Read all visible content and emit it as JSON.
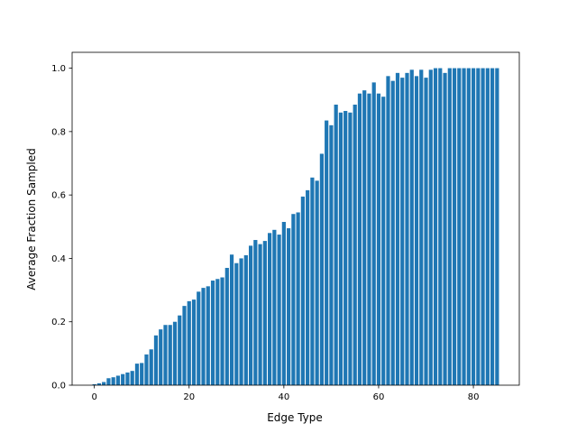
{
  "chart_data": {
    "type": "bar",
    "xlabel": "Edge Type",
    "ylabel": "Average Fraction Sampled",
    "x": [
      0,
      1,
      2,
      3,
      4,
      5,
      6,
      7,
      8,
      9,
      10,
      11,
      12,
      13,
      14,
      15,
      16,
      17,
      18,
      19,
      20,
      21,
      22,
      23,
      24,
      25,
      26,
      27,
      28,
      29,
      30,
      31,
      32,
      33,
      34,
      35,
      36,
      37,
      38,
      39,
      40,
      41,
      42,
      43,
      44,
      45,
      46,
      47,
      48,
      49,
      50,
      51,
      52,
      53,
      54,
      55,
      56,
      57,
      58,
      59,
      60,
      61,
      62,
      63,
      64,
      65,
      66,
      67,
      68,
      69,
      70,
      71,
      72,
      73,
      74,
      75,
      76,
      77,
      78,
      79,
      80,
      81,
      82,
      83,
      84,
      85
    ],
    "values": [
      0.003,
      0.006,
      0.01,
      0.022,
      0.025,
      0.03,
      0.035,
      0.04,
      0.045,
      0.068,
      0.07,
      0.097,
      0.113,
      0.157,
      0.176,
      0.19,
      0.19,
      0.2,
      0.22,
      0.25,
      0.265,
      0.27,
      0.295,
      0.307,
      0.312,
      0.33,
      0.335,
      0.34,
      0.37,
      0.412,
      0.385,
      0.4,
      0.41,
      0.44,
      0.458,
      0.445,
      0.455,
      0.48,
      0.49,
      0.475,
      0.515,
      0.495,
      0.54,
      0.545,
      0.595,
      0.615,
      0.655,
      0.645,
      0.73,
      0.835,
      0.82,
      0.885,
      0.86,
      0.865,
      0.86,
      0.885,
      0.92,
      0.93,
      0.92,
      0.955,
      0.92,
      0.91,
      0.975,
      0.96,
      0.985,
      0.97,
      0.985,
      0.995,
      0.975,
      0.995,
      0.97,
      0.995,
      1.0,
      1.0,
      0.985,
      1.0,
      1.0,
      1.0,
      1.0,
      1.0,
      1.0,
      1.0,
      1.0,
      1.0,
      1.0,
      1.0
    ],
    "color": "#1f77b4",
    "xlim": [
      -4.69,
      89.69
    ],
    "xticks": [
      0,
      20,
      40,
      60,
      80
    ],
    "ylim": [
      0,
      1.05
    ],
    "yticks": [
      {
        "value": 0,
        "label": "0.0"
      },
      {
        "value": 0.2,
        "label": "0.2"
      },
      {
        "value": 0.4,
        "label": "0.4"
      },
      {
        "value": 0.6,
        "label": "0.6"
      },
      {
        "value": 0.8,
        "label": "0.8"
      },
      {
        "value": 1,
        "label": "1.0"
      }
    ]
  }
}
